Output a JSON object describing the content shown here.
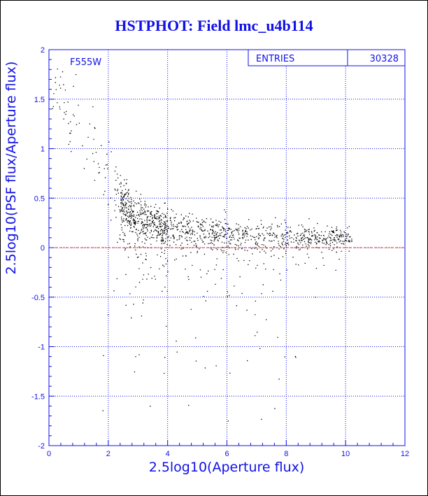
{
  "title": "HSTPHOT: Field lmc_u4b114",
  "chart_data": {
    "type": "scatter",
    "title": "HSTPHOT: Field lmc_u4b114",
    "xlabel": "2.5log10(Aperture flux)",
    "ylabel": "2.5log10(PSF flux/Aperture flux)",
    "xlim": [
      0,
      12
    ],
    "ylim": [
      -2,
      2
    ],
    "x_ticks": [
      "0",
      "2",
      "4",
      "6",
      "8",
      "10",
      "12"
    ],
    "y_ticks": [
      "-2",
      "-1.5",
      "-1",
      "-0.5",
      "0",
      "0.5",
      "1",
      "1.5",
      "2"
    ],
    "grid": true,
    "filter_label": "F555W",
    "stats": {
      "label": "ENTRIES",
      "value": "30328"
    },
    "reference_line": {
      "y": 0,
      "color": "#e02020",
      "style": "dashed"
    },
    "trend": [
      {
        "x": 1.8,
        "y": 0.9
      },
      {
        "x": 2.5,
        "y": 0.45
      },
      {
        "x": 3,
        "y": 0.3
      },
      {
        "x": 4,
        "y": 0.2
      },
      {
        "x": 5,
        "y": 0.16
      },
      {
        "x": 6,
        "y": 0.14
      },
      {
        "x": 7,
        "y": 0.13
      },
      {
        "x": 8,
        "y": 0.12
      },
      {
        "x": 9,
        "y": 0.12
      },
      {
        "x": 10,
        "y": 0.12
      }
    ],
    "n_points": 30328,
    "colors": {
      "points": "#000000",
      "axes": "#1010e8",
      "grid": "#1010e8",
      "zero_line": "#e02020"
    }
  }
}
